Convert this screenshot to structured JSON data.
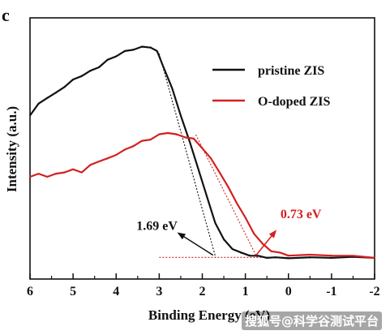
{
  "panel_label": "c",
  "watermark": "搜狐号@科学谷测试平台",
  "chart_data": {
    "type": "line",
    "title": "",
    "xlabel": "Binding Energy (eV)",
    "ylabel": "Intensity (a.u.)",
    "xlim": [
      6,
      -2
    ],
    "ylim": [
      0,
      100
    ],
    "x_reversed": true,
    "xticks": [
      6,
      5,
      4,
      3,
      2,
      1,
      0,
      -1,
      -2
    ],
    "xtick_labels": [
      "6",
      "5",
      "4",
      "3",
      "2",
      "1",
      "0",
      "-1",
      "-2"
    ],
    "legend_position": "top-right",
    "grid": false,
    "series": [
      {
        "name": "pristine ZIS",
        "color": "#111111",
        "x": [
          6,
          5.8,
          5.6,
          5.4,
          5.2,
          5.0,
          4.8,
          4.6,
          4.4,
          4.2,
          4.0,
          3.8,
          3.6,
          3.4,
          3.2,
          3.05,
          2.9,
          2.7,
          2.5,
          2.3,
          2.1,
          1.9,
          1.7,
          1.5,
          1.3,
          1.1,
          0.9,
          0.7,
          0.5,
          0.3,
          0.0,
          -0.5,
          -1.0,
          -1.5,
          -2.0
        ],
        "y": [
          66,
          71,
          74,
          76,
          79,
          82,
          84,
          86,
          88,
          91,
          93,
          95,
          96,
          97,
          97,
          95,
          88,
          78,
          66,
          54,
          42,
          29,
          17,
          9,
          5,
          3,
          2,
          1.5,
          1,
          0.8,
          0.8,
          0.8,
          1,
          1,
          1
        ]
      },
      {
        "name": "O-doped ZIS",
        "color": "#d42020",
        "x": [
          6,
          5.8,
          5.6,
          5.4,
          5.2,
          5.0,
          4.8,
          4.6,
          4.4,
          4.2,
          4.0,
          3.8,
          3.6,
          3.4,
          3.2,
          3.0,
          2.8,
          2.6,
          2.4,
          2.2,
          2.0,
          1.8,
          1.6,
          1.4,
          1.2,
          1.0,
          0.8,
          0.6,
          0.4,
          0.2,
          0.0,
          -0.5,
          -1.0,
          -1.5,
          -2.0
        ],
        "y": [
          38,
          39,
          38,
          39,
          40,
          41,
          40,
          43,
          45,
          46,
          48,
          50,
          52,
          54,
          55,
          57,
          58,
          57,
          56,
          55,
          51,
          46,
          40,
          33,
          26,
          19,
          12,
          7,
          4,
          3,
          2,
          2,
          2,
          1.5,
          1
        ]
      }
    ],
    "annotations": [
      {
        "text": "1.69 eV",
        "value": 1.69,
        "color": "#111111",
        "tangent": {
          "x1": 3.0,
          "y1": 94,
          "x2": 1.69,
          "y2": 1
        },
        "arrow_from": {
          "x": 1.75,
          "y": 2
        },
        "arrow_to": {
          "x": 2.55,
          "y": 12
        }
      },
      {
        "text": "0.73 eV",
        "value": 0.73,
        "color": "#d42020",
        "tangent": {
          "x1": 2.15,
          "y1": 57,
          "x2": 0.73,
          "y2": 1
        },
        "arrow_from": {
          "x": 0.75,
          "y": 2
        },
        "arrow_to": {
          "x": 0.3,
          "y": 13
        }
      }
    ],
    "baseline": {
      "color": "#d42020",
      "y": 1,
      "x_from": 3.0,
      "x_to": 0.0
    }
  }
}
